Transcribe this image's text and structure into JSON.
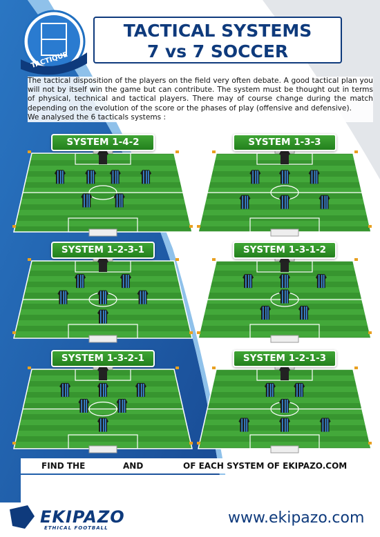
{
  "logo": {
    "badge": "TACTIQUE"
  },
  "header": {
    "title_lines": [
      "TACTICAL SYSTEMS",
      "7 vs 7 SOCCER"
    ]
  },
  "intro": {
    "paragraph": "The tactical disposition of the players on the field very often debate. A good tactical plan you will not by itself win the game but can contribute. The system must be thought out in terms of physical, technical and tactical players. There may of course change during the match depending on the evolution of the score or the phases of play (offensive and defensive).",
    "lead": "We analysed the 6 tacticals systems :"
  },
  "systems": [
    {
      "label": "SYSTEM 1-4-2"
    },
    {
      "label": "SYSTEM 1-3-3"
    },
    {
      "label": "SYSTEM 1-2-3-1"
    },
    {
      "label": "SYSTEM 1-3-1-2"
    },
    {
      "label": "SYSTEM 1-3-2-1"
    },
    {
      "label": "SYSTEM 1-2-1-3"
    }
  ],
  "footer_bar": {
    "find": "FIND THE",
    "and": "AND",
    "rest": "OF EACH SYSTEM OF EKIPAZO.COM"
  },
  "brand": {
    "name": "EKIPAZO",
    "tagline": "ETHICAL FOOTBALL",
    "url": "www.ekipazo.com"
  }
}
